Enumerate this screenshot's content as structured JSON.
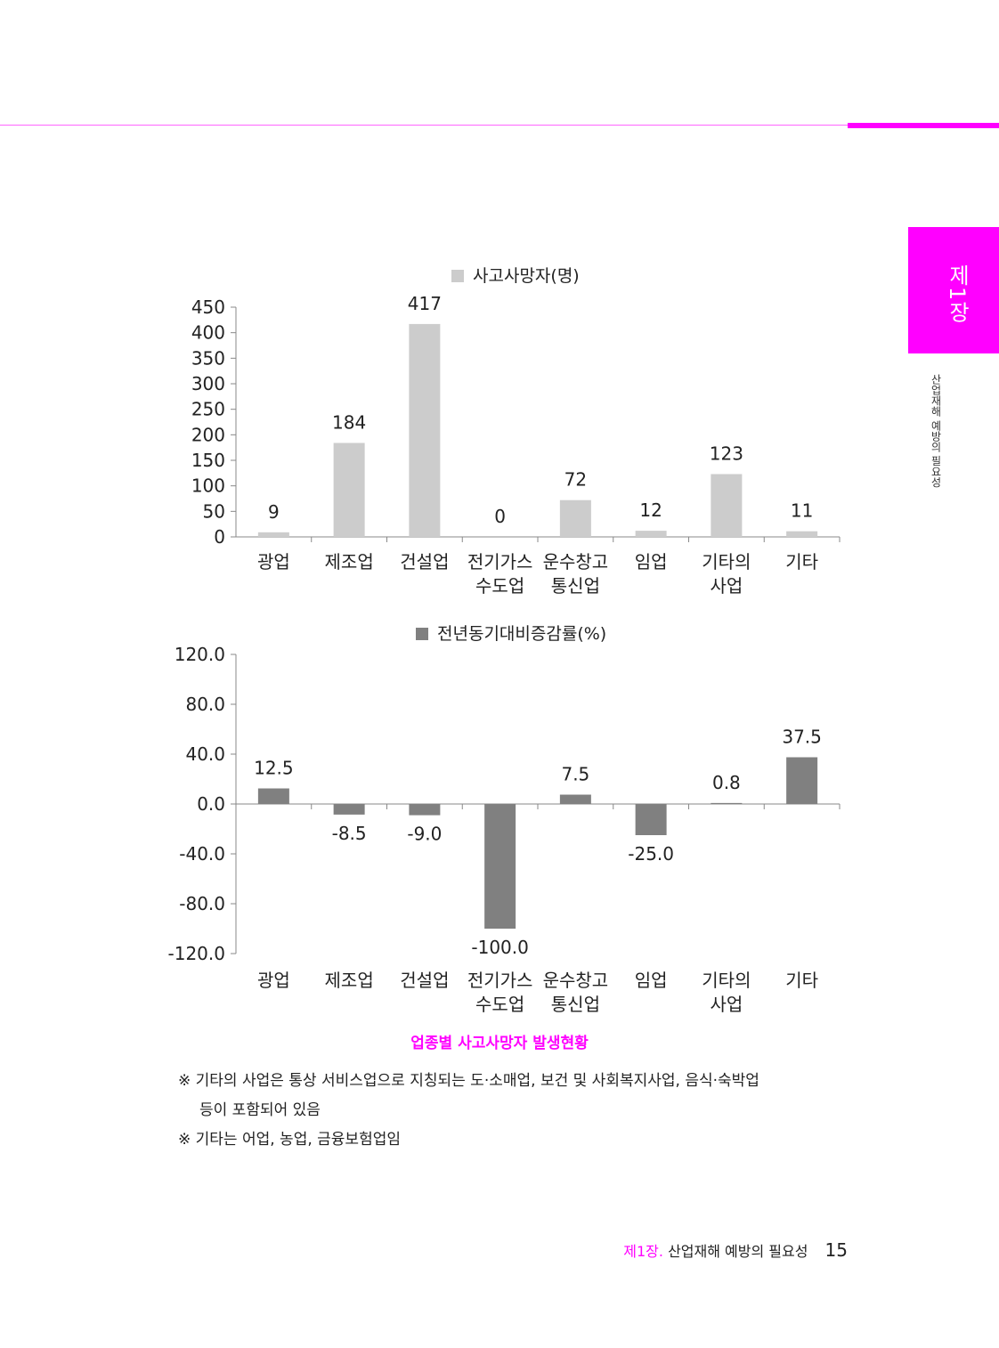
{
  "side": {
    "chapter_tab": "제1장",
    "vertical_title": "산업재해 예방의 필요성"
  },
  "colors": {
    "accent": "#ff00ff",
    "series1": "#cccccc",
    "series2": "#808080"
  },
  "chart_data": [
    {
      "type": "bar",
      "legend": "사고사망자(명)",
      "categories": [
        [
          "광업"
        ],
        [
          "제조업"
        ],
        [
          "건설업"
        ],
        [
          "전기가스",
          "수도업"
        ],
        [
          "운수창고",
          "통신업"
        ],
        [
          "임업"
        ],
        [
          "기타의",
          "사업"
        ],
        [
          "기타"
        ]
      ],
      "values": [
        9,
        184,
        417,
        0,
        72,
        12,
        123,
        11
      ],
      "value_labels": [
        "9",
        "184",
        "417",
        "0",
        "72",
        "12",
        "123",
        "11"
      ],
      "yticks": [
        "450",
        "400",
        "350",
        "300",
        "250",
        "200",
        "150",
        "100",
        "50",
        "0"
      ],
      "ylim": [
        0,
        450
      ],
      "color": "#cccccc",
      "grid": false,
      "legend_position": "top"
    },
    {
      "type": "bar",
      "legend": "전년동기대비증감률(%)",
      "categories": [
        [
          "광업"
        ],
        [
          "제조업"
        ],
        [
          "건설업"
        ],
        [
          "전기가스",
          "수도업"
        ],
        [
          "운수창고",
          "통신업"
        ],
        [
          "임업"
        ],
        [
          "기타의",
          "사업"
        ],
        [
          "기타"
        ]
      ],
      "values": [
        12.5,
        -8.5,
        -9.0,
        -100.0,
        7.5,
        -25.0,
        0.8,
        37.5
      ],
      "value_labels": [
        "12.5",
        "-8.5",
        "-9.0",
        "-100.0",
        "7.5",
        "-25.0",
        "0.8",
        "37.5"
      ],
      "yticks": [
        "120.0",
        "80.0",
        "40.0",
        "0.0",
        "-40.0",
        "-80.0",
        "-120.0"
      ],
      "ylim": [
        -120,
        120
      ],
      "color": "#808080",
      "grid": false,
      "legend_position": "top"
    }
  ],
  "caption": "업종별 사고사망자 발생현황",
  "notes": {
    "note1_line1": "※ 기타의 사업은 통상 서비스업으로 지칭되는 도·소매업, 보건 및 사회복지사업, 음식·숙박업",
    "note1_line2": "등이 포함되어 있음",
    "note2": "※ 기타는 어업, 농업, 금융보험업임"
  },
  "footer": {
    "chapter": "제1장.",
    "title": "산업재해 예방의 필요성",
    "page": "15"
  }
}
